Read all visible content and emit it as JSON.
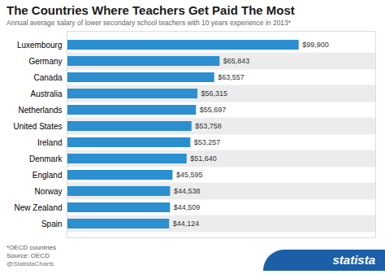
{
  "chart_data": {
    "type": "bar",
    "orientation": "horizontal",
    "title": "The Countries Where Teachers Get Paid The Most",
    "subtitle": "Annual average salary of lower secondary school teachers with 10 years experience in 2013*",
    "categories": [
      "Luxembourg",
      "Germany",
      "Canada",
      "Australia",
      "Netherlands",
      "United States",
      "Ireland",
      "Denmark",
      "England",
      "Norway",
      "New Zealand",
      "Spain"
    ],
    "values": [
      99900,
      65843,
      63557,
      56315,
      55697,
      53758,
      53257,
      51640,
      45595,
      44538,
      44509,
      44124
    ],
    "value_labels": [
      "$99,900",
      "$65,843",
      "$63,557",
      "$56,315",
      "$55,697",
      "$53,758",
      "$53,257",
      "$51,640",
      "$45,595",
      "$44,538",
      "$44,509",
      "$44,124"
    ],
    "data_labels": true,
    "color": "#2B8FD0",
    "xlim": [
      0,
      132867
    ],
    "tick_labels": "y",
    "grid": false,
    "annotations": [
      "*OECD countries",
      "Source: OECD",
      "@StatistaCharts",
      "statista"
    ]
  }
}
